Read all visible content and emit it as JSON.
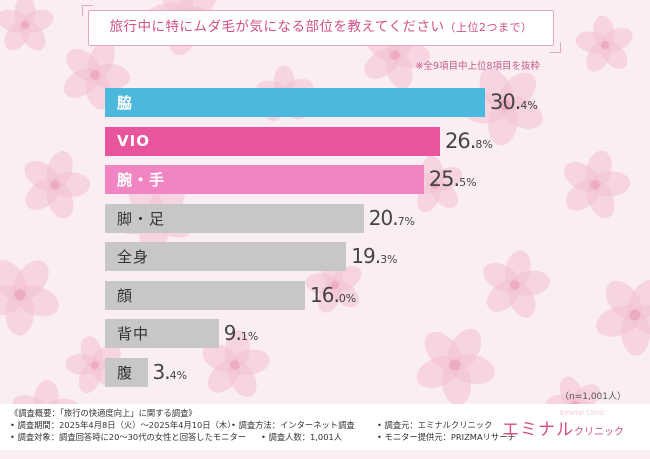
{
  "title": {
    "main": "旅行中に特にムダ毛が気になる部位を教えてください",
    "sub": "（上位2つまで）"
  },
  "note": "※全9項目中上位8項目を抜粋",
  "chart_data": {
    "type": "bar",
    "orientation": "horizontal",
    "unit": "%",
    "xlim": [
      0,
      34
    ],
    "categories": [
      "脇",
      "VIO",
      "腕・手",
      "脚・足",
      "全身",
      "顔",
      "背中",
      "腹"
    ],
    "values": [
      30.4,
      26.8,
      25.5,
      20.7,
      19.3,
      16.0,
      9.1,
      3.4
    ],
    "colors": [
      "#4cb8dc",
      "#e9559d",
      "#f184c3",
      "#c7c7c7",
      "#c7c7c7",
      "#c7c7c7",
      "#c7c7c7",
      "#c7c7c7"
    ],
    "highlight_top": 3
  },
  "sample_size": "（n=1,001人）",
  "footer": {
    "line1": "《調査概要：「旅行の快適度向上」に関する調査》",
    "period": "• 調査期間：2025年4月8日（火）～2025年4月10日（木）",
    "method": "• 調査方法：インターネット調査",
    "source": "• 調査元：エミナルクリニック",
    "target": "• 調査対象：調査回答時に20～30代の女性と回答したモニター",
    "count": "• 調査人数：1,001人",
    "provider": "• モニター提供元：PRIZMAリサーチ"
  },
  "logo": {
    "main": "エミナル",
    "suffix": "クリニック",
    "watermark": "Eminal Clinic"
  },
  "colors": {
    "accent": "#d34f86",
    "blue": "#4cb8dc",
    "magenta": "#e9559d",
    "pink": "#f184c3",
    "gray": "#c7c7c7"
  }
}
